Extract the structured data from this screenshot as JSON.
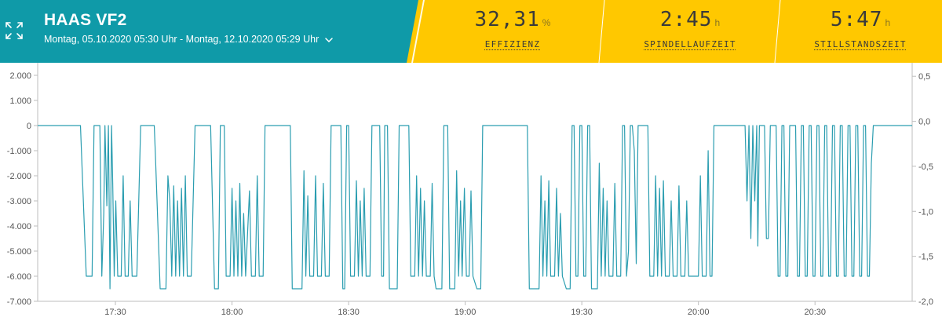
{
  "machine": {
    "title": "HAAS VF2",
    "date_range": "Montag, 05.10.2020 05:30 Uhr - Montag, 12.10.2020 05:29 Uhr"
  },
  "icons": {
    "expand": "expand-icon",
    "dropdown": "chevron-down-icon"
  },
  "colors": {
    "header_teal": "#0f9aa8",
    "kpi_yellow": "#ffc800",
    "series": "#2a9db0"
  },
  "kpis": [
    {
      "value": "32,31",
      "unit": "%",
      "label": "EFFIZIENZ"
    },
    {
      "value": "2:45",
      "unit": "h",
      "label": "SPINDELLAUFZEIT"
    },
    {
      "value": "5:47",
      "unit": "h",
      "label": "STILLSTANDSZEIT"
    }
  ],
  "chart_data": {
    "type": "line",
    "y_left": {
      "lim": [
        -7000,
        2500
      ],
      "ticks": [
        2000,
        1000,
        0,
        -1000,
        -2000,
        -3000,
        -4000,
        -5000,
        -6000,
        -7000
      ],
      "labels": [
        "2.000",
        "1.000",
        "0",
        "-1.000",
        "-2.000",
        "-3.000",
        "-4.000",
        "-5.000",
        "-6.000",
        "-7.000"
      ]
    },
    "y_right": {
      "lim": [
        -2.0,
        0.65
      ],
      "ticks": [
        0.5,
        0.0,
        -0.5,
        -1.0,
        -1.5,
        -2.0
      ],
      "labels": [
        "0,5",
        "0,0",
        "-0,5",
        "-1,0",
        "-1,5",
        "-2,0"
      ]
    },
    "x": {
      "start": "17:10",
      "end": "20:55",
      "ticks": [
        "17:30",
        "18:00",
        "18:30",
        "19:00",
        "19:30",
        "20:00",
        "20:30"
      ]
    },
    "grid": false,
    "series": [
      {
        "values": [
          [
            "17:10",
            0
          ],
          [
            "17:21",
            0
          ],
          [
            "17:22",
            -4000
          ],
          [
            "17:22.5",
            -6000
          ],
          [
            "17:24",
            -6000
          ],
          [
            "17:24.5",
            0
          ],
          [
            "17:26",
            0
          ],
          [
            "17:26.5",
            -6000
          ],
          [
            "17:27",
            -3500
          ],
          [
            "17:27.3",
            0
          ],
          [
            "17:27.8",
            -3200
          ],
          [
            "17:28.2",
            0
          ],
          [
            "17:28.6",
            -6500
          ],
          [
            "17:29",
            0
          ],
          [
            "17:29.3",
            -2300
          ],
          [
            "17:29.7",
            -6000
          ],
          [
            "17:30.1",
            -3000
          ],
          [
            "17:30.6",
            -6000
          ],
          [
            "17:31.5",
            -6000
          ],
          [
            "17:32",
            -2000
          ],
          [
            "17:32.5",
            -6000
          ],
          [
            "17:33.3",
            -6000
          ],
          [
            "17:33.8",
            -3000
          ],
          [
            "17:34.3",
            -6000
          ],
          [
            "17:35.5",
            -6000
          ],
          [
            "17:36.5",
            0
          ],
          [
            "17:40",
            0
          ],
          [
            "17:40.3",
            -1200
          ],
          [
            "17:41.5",
            -6500
          ],
          [
            "17:43",
            -6500
          ],
          [
            "17:43.5",
            -2000
          ],
          [
            "17:44",
            -3000
          ],
          [
            "17:44.5",
            -6000
          ],
          [
            "17:45",
            -2400
          ],
          [
            "17:45.5",
            -6000
          ],
          [
            "17:46",
            -3000
          ],
          [
            "17:46.5",
            -6000
          ],
          [
            "17:47",
            -2500
          ],
          [
            "17:47.5",
            -6000
          ],
          [
            "17:48",
            -2000
          ],
          [
            "17:48.5",
            -6000
          ],
          [
            "17:49.5",
            -6000
          ],
          [
            "17:50.5",
            0
          ],
          [
            "17:54.5",
            0
          ],
          [
            "17:55.5",
            -6500
          ],
          [
            "17:56.5",
            -6500
          ],
          [
            "17:57",
            0
          ],
          [
            "17:58",
            0
          ],
          [
            "17:58.5",
            -6000
          ],
          [
            "17:59.5",
            -6000
          ],
          [
            "18:00",
            -2500
          ],
          [
            "18:00.5",
            -6000
          ],
          [
            "18:01",
            -3000
          ],
          [
            "18:01.5",
            -6000
          ],
          [
            "18:02",
            -2300
          ],
          [
            "18:02.5",
            -6000
          ],
          [
            "18:03",
            -3500
          ],
          [
            "18:03.5",
            -6000
          ],
          [
            "18:04.5",
            -2600
          ],
          [
            "18:05",
            -6000
          ],
          [
            "18:06",
            -6000
          ],
          [
            "18:06.5",
            -2000
          ],
          [
            "18:07",
            -6000
          ],
          [
            "18:08",
            -6000
          ],
          [
            "18:08.5",
            0
          ],
          [
            "18:15",
            0
          ],
          [
            "18:15.5",
            -6500
          ],
          [
            "18:18",
            -6500
          ],
          [
            "18:18.5",
            -1800
          ],
          [
            "18:19",
            -6000
          ],
          [
            "18:19.5",
            -2800
          ],
          [
            "18:20",
            -6000
          ],
          [
            "18:21",
            -6000
          ],
          [
            "18:21.5",
            -2000
          ],
          [
            "18:22",
            -6000
          ],
          [
            "18:23",
            -6000
          ],
          [
            "18:23.5",
            -2300
          ],
          [
            "18:24",
            -6000
          ],
          [
            "18:25",
            -6000
          ],
          [
            "18:25.5",
            0
          ],
          [
            "18:28",
            0
          ],
          [
            "18:28.5",
            -6500
          ],
          [
            "18:29",
            -6500
          ],
          [
            "18:29.5",
            0
          ],
          [
            "18:30",
            0
          ],
          [
            "18:30.5",
            -6000
          ],
          [
            "18:31.5",
            -6000
          ],
          [
            "18:32",
            -2200
          ],
          [
            "18:32.5",
            -6000
          ],
          [
            "18:33",
            -3000
          ],
          [
            "18:33.5",
            -6000
          ],
          [
            "18:34",
            -2500
          ],
          [
            "18:34.5",
            -6000
          ],
          [
            "18:35.5",
            -6000
          ],
          [
            "18:36",
            0
          ],
          [
            "18:38",
            0
          ],
          [
            "18:38.5",
            -6000
          ],
          [
            "18:39",
            -6000
          ],
          [
            "18:39.3",
            0
          ],
          [
            "18:40",
            0
          ],
          [
            "18:40.5",
            -6500
          ],
          [
            "18:42.5",
            -6500
          ],
          [
            "18:43",
            0
          ],
          [
            "18:45.5",
            0
          ],
          [
            "18:46",
            -6000
          ],
          [
            "18:47",
            -6000
          ],
          [
            "18:47.5",
            -2000
          ],
          [
            "18:48",
            -6000
          ],
          [
            "18:48.5",
            -2500
          ],
          [
            "18:49",
            -6000
          ],
          [
            "18:49.5",
            -3000
          ],
          [
            "18:50",
            -6000
          ],
          [
            "18:51",
            -6000
          ],
          [
            "18:51.5",
            -2300
          ],
          [
            "18:52",
            -6000
          ],
          [
            "18:52.5",
            -6500
          ],
          [
            "18:54",
            -6500
          ],
          [
            "18:54.5",
            0
          ],
          [
            "18:55.5",
            0
          ],
          [
            "18:56",
            -6500
          ],
          [
            "18:57.3",
            -6500
          ],
          [
            "18:57.8",
            -1800
          ],
          [
            "18:58.3",
            -6000
          ],
          [
            "18:58.8",
            -3000
          ],
          [
            "18:59.2",
            -6000
          ],
          [
            "18:59.8",
            -2500
          ],
          [
            "19:00.3",
            -6000
          ],
          [
            "19:01",
            -6000
          ],
          [
            "19:01.5",
            -2600
          ],
          [
            "19:02",
            -6000
          ],
          [
            "19:03",
            -6500
          ],
          [
            "19:04",
            -6500
          ],
          [
            "19:04.5",
            0
          ],
          [
            "19:16",
            0
          ],
          [
            "19:16.5",
            -6500
          ],
          [
            "19:19",
            -6500
          ],
          [
            "19:19.5",
            -2000
          ],
          [
            "19:20",
            -6000
          ],
          [
            "19:20.5",
            -3000
          ],
          [
            "19:21",
            -6000
          ],
          [
            "19:21.5",
            -2200
          ],
          [
            "19:22",
            -6000
          ],
          [
            "19:23",
            -6000
          ],
          [
            "19:23.5",
            -2500
          ],
          [
            "19:24",
            -6000
          ],
          [
            "19:24.5",
            -3500
          ],
          [
            "19:25",
            -6000
          ],
          [
            "19:26",
            -6500
          ],
          [
            "19:27",
            -6500
          ],
          [
            "19:27.5",
            0
          ],
          [
            "19:28",
            0
          ],
          [
            "19:28.5",
            -6000
          ],
          [
            "19:29",
            -6000
          ],
          [
            "19:29.5",
            0
          ],
          [
            "19:30",
            0
          ],
          [
            "19:30.5",
            -6000
          ],
          [
            "19:31",
            -6000
          ],
          [
            "19:31.5",
            0
          ],
          [
            "19:32",
            0
          ],
          [
            "19:32.5",
            -6500
          ],
          [
            "19:34",
            -6500
          ],
          [
            "19:34.5",
            -1500
          ],
          [
            "19:35",
            -6000
          ],
          [
            "19:35.5",
            -2500
          ],
          [
            "19:36",
            -6000
          ],
          [
            "19:36.5",
            -3000
          ],
          [
            "19:37",
            -6000
          ],
          [
            "19:38",
            -6000
          ],
          [
            "19:38.5",
            -2300
          ],
          [
            "19:39",
            -6000
          ],
          [
            "19:40",
            -6000
          ],
          [
            "19:40.5",
            0
          ],
          [
            "19:41",
            0
          ],
          [
            "19:41.5",
            -6000
          ],
          [
            "19:42",
            -5000
          ],
          [
            "19:42.5",
            0
          ],
          [
            "19:43",
            0
          ],
          [
            "19:43.5",
            -1000
          ],
          [
            "19:44",
            -5500
          ],
          [
            "19:44.5",
            0
          ],
          [
            "19:47",
            0
          ],
          [
            "19:47.5",
            -6000
          ],
          [
            "19:48.5",
            -6000
          ],
          [
            "19:49",
            -2000
          ],
          [
            "19:49.5",
            -6000
          ],
          [
            "19:50",
            -2500
          ],
          [
            "19:50.5",
            -6000
          ],
          [
            "19:51",
            -2200
          ],
          [
            "19:51.5",
            -6000
          ],
          [
            "19:52.5",
            -6000
          ],
          [
            "19:53",
            -3000
          ],
          [
            "19:53.5",
            -6000
          ],
          [
            "19:54.5",
            -6000
          ],
          [
            "19:55",
            -2400
          ],
          [
            "19:55.5",
            -6000
          ],
          [
            "19:56.5",
            -6000
          ],
          [
            "19:57",
            -3000
          ],
          [
            "19:57.5",
            -6000
          ],
          [
            "20:00",
            -6000
          ],
          [
            "20:00.5",
            -2000
          ],
          [
            "20:01",
            -6000
          ],
          [
            "20:02",
            -6000
          ],
          [
            "20:02.5",
            -1000
          ],
          [
            "20:03",
            -6000
          ],
          [
            "20:03.5",
            -6000
          ],
          [
            "20:04",
            0
          ],
          [
            "20:12",
            0
          ],
          [
            "20:12.5",
            -3000
          ],
          [
            "20:13",
            0
          ],
          [
            "20:13.5",
            -4500
          ],
          [
            "20:14",
            0
          ],
          [
            "20:14.5",
            -3000
          ],
          [
            "20:15",
            0
          ],
          [
            "20:15.3",
            -4800
          ],
          [
            "20:15.7",
            0
          ],
          [
            "20:17",
            0
          ],
          [
            "20:17.5",
            -4500
          ],
          [
            "20:18",
            -4500
          ],
          [
            "20:18.5",
            0
          ],
          [
            "20:20",
            0
          ],
          [
            "20:20.5",
            -6000
          ],
          [
            "20:21",
            -6000
          ],
          [
            "20:21.5",
            0
          ],
          [
            "20:22",
            0
          ],
          [
            "20:22.5",
            -6000
          ],
          [
            "20:23",
            -6000
          ],
          [
            "20:23.5",
            0
          ],
          [
            "20:25",
            0
          ],
          [
            "20:25.5",
            -6000
          ],
          [
            "20:26",
            -6000
          ],
          [
            "20:26.5",
            0
          ],
          [
            "20:27",
            0
          ],
          [
            "20:27.5",
            -6000
          ],
          [
            "20:28",
            -6000
          ],
          [
            "20:28.5",
            0
          ],
          [
            "20:29",
            0
          ],
          [
            "20:29.5",
            -6000
          ],
          [
            "20:30",
            -6000
          ],
          [
            "20:30.5",
            0
          ],
          [
            "20:31",
            0
          ],
          [
            "20:31.5",
            -6000
          ],
          [
            "20:32",
            -6000
          ],
          [
            "20:32.5",
            0
          ],
          [
            "20:33",
            0
          ],
          [
            "20:33.5",
            -6000
          ],
          [
            "20:34",
            -6000
          ],
          [
            "20:34.5",
            0
          ],
          [
            "20:35",
            0
          ],
          [
            "20:35.5",
            -6000
          ],
          [
            "20:36",
            -6000
          ],
          [
            "20:36.5",
            0
          ],
          [
            "20:37",
            0
          ],
          [
            "20:37.5",
            -6000
          ],
          [
            "20:38",
            -6000
          ],
          [
            "20:38.5",
            0
          ],
          [
            "20:39",
            0
          ],
          [
            "20:39.5",
            -6000
          ],
          [
            "20:40",
            -6000
          ],
          [
            "20:40.5",
            0
          ],
          [
            "20:41",
            0
          ],
          [
            "20:41.5",
            -6000
          ],
          [
            "20:42",
            -6000
          ],
          [
            "20:42.5",
            0
          ],
          [
            "20:43",
            0
          ],
          [
            "20:43.5",
            -6000
          ],
          [
            "20:44",
            -6000
          ],
          [
            "20:44.5",
            -1500
          ],
          [
            "20:45",
            0
          ],
          [
            "20:55",
            0
          ]
        ]
      }
    ]
  }
}
